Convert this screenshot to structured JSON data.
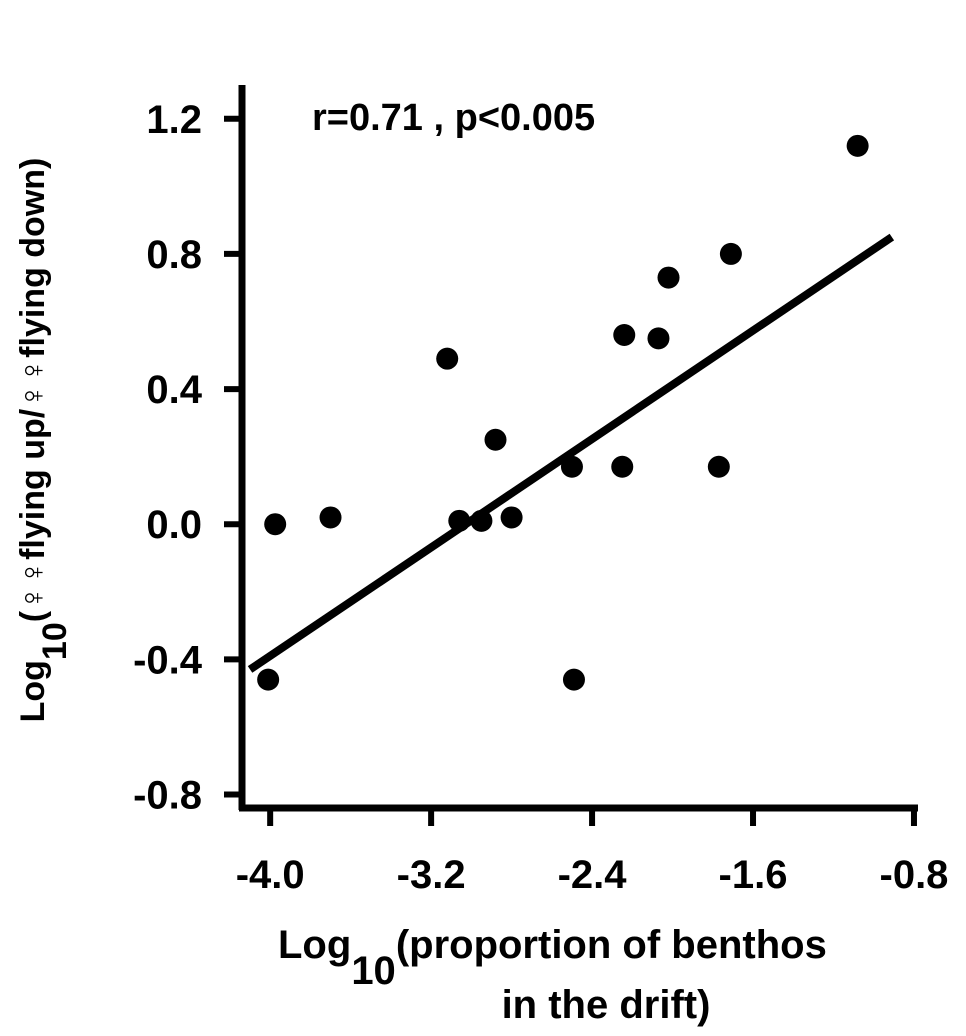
{
  "chart_data": {
    "type": "scatter",
    "annotation": "r=0.71 , p<0.005",
    "y_label": [
      "Log",
      "10",
      "(♀♀flying up/♀♀flying down)"
    ],
    "x_label": [
      "Log",
      "10",
      "(proportion of benthos",
      "in the drift)"
    ],
    "x": [
      -3.975,
      -4.01,
      -3.7,
      -3.12,
      -3.06,
      -2.95,
      -2.88,
      -2.8,
      -2.5,
      -2.49,
      -2.25,
      -2.24,
      -2.07,
      -2.02,
      -1.77,
      -1.71,
      -1.08
    ],
    "y": [
      0.0,
      -0.46,
      0.02,
      0.49,
      0.01,
      0.01,
      0.25,
      0.02,
      0.17,
      -0.46,
      0.17,
      0.56,
      0.55,
      0.73,
      0.17,
      0.8,
      1.12
    ],
    "color": "#000000",
    "fit_line": {
      "x": [
        -4.1,
        -0.91
      ],
      "y": [
        -0.43,
        0.85
      ]
    },
    "xlim": [
      -4.14,
      -0.78
    ],
    "ylim": [
      -0.84,
      1.3
    ],
    "xticks": [
      {
        "value": -4,
        "label": "-4.0"
      },
      -3.2,
      -2.4,
      -1.6,
      -0.8
    ],
    "yticks": [
      -0.8,
      -0.4,
      {
        "value": 0,
        "label": "0.0"
      },
      0.4,
      0.8,
      1.2
    ]
  }
}
